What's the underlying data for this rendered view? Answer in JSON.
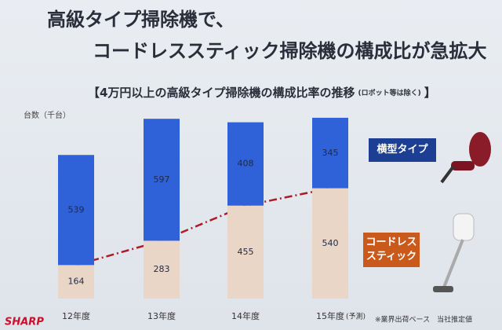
{
  "chart_data": {
    "type": "stacked-bar",
    "title": [
      "高級タイプ掃除機で、",
      "コードレススティック掃除機の構成比が急拡大"
    ],
    "subtitle": "【4万円以上の高級タイプ掃除機の構成比率の推移",
    "subtitle_note": "(ロボット等は除く)",
    "subtitle_end": "】",
    "y_label": "台数（千台）",
    "categories": [
      "12年度",
      "13年度",
      "14年度",
      "15年度"
    ],
    "forecast_note": "(予測)",
    "series": [
      {
        "name": "コードレススティック",
        "color": "#ead6c6",
        "legend_color": "#c95a1c",
        "values": [
          164,
          283,
          455,
          540
        ]
      },
      {
        "name": "横型タイプ",
        "color": "#2f62d8",
        "legend_color": "#1d3f93",
        "values": [
          539,
          597,
          408,
          345
        ]
      }
    ],
    "trend_line_color": "#b01a28",
    "ylim": [
      0,
      900
    ],
    "footnote": "※業界出荷ベース　当社推定値",
    "brand": "SHARP"
  }
}
